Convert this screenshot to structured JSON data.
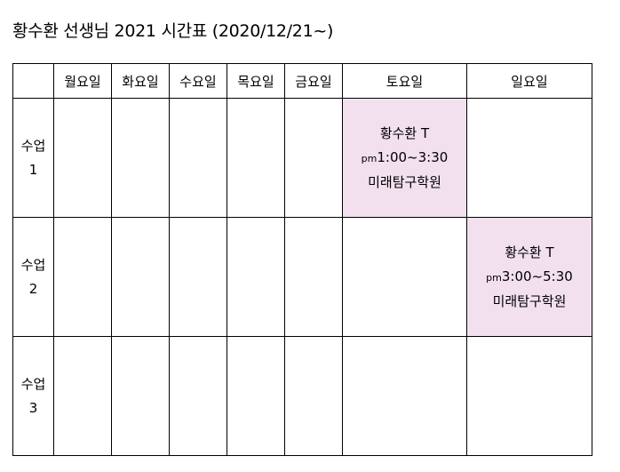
{
  "title": "황수환 선생님 2021 시간표 (2020/12/21~)",
  "header": {
    "corner": "",
    "days": [
      "월요일",
      "화요일",
      "수요일",
      "목요일",
      "금요일",
      "토요일",
      "일요일"
    ]
  },
  "rows": [
    {
      "label_top": "수업",
      "label_bottom": "1",
      "lesson": {
        "teacher": "황수환 T",
        "pm": "pm",
        "time": "1:00~3:30",
        "place": "미래탐구학원"
      }
    },
    {
      "label_top": "수업",
      "label_bottom": "2",
      "lesson": {
        "teacher": "황수환 T",
        "pm": "pm",
        "time": "3:00~5:30",
        "place": "미래탐구학원"
      }
    },
    {
      "label_top": "수업",
      "label_bottom": "3"
    }
  ],
  "colors": {
    "lesson_highlight": "#f2e0ef",
    "border": "#000000"
  }
}
